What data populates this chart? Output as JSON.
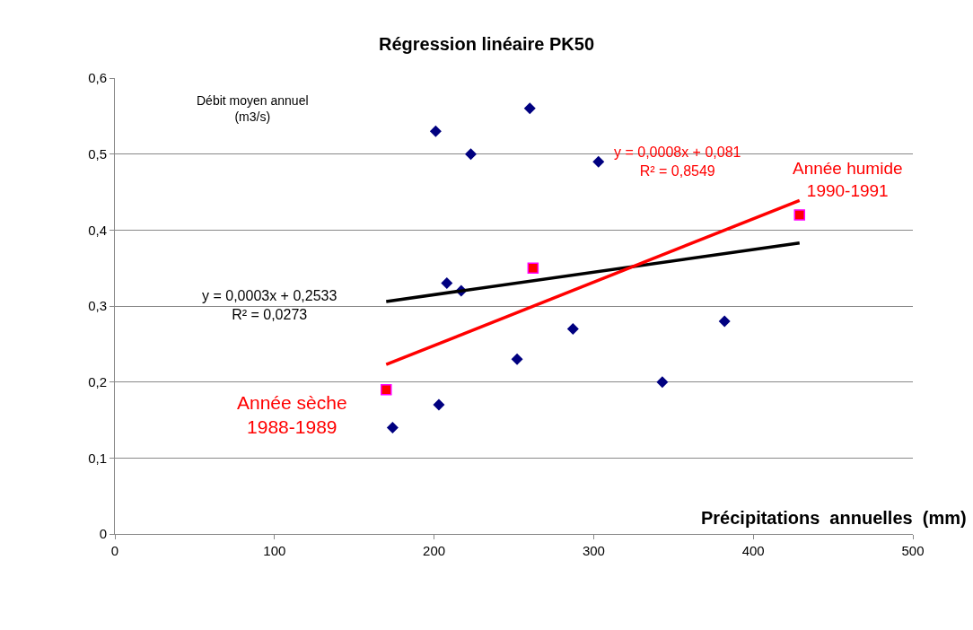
{
  "chart_data": {
    "type": "scatter",
    "title": "Régression linéaire PK50",
    "xlabel": "Précipitations  annuelles  (mm)",
    "ylabel": "Débit moyen annuel\n(m3/s)",
    "xlim": [
      0,
      500
    ],
    "xticks": [
      0,
      100,
      200,
      300,
      400,
      500
    ],
    "ylim": [
      0,
      0.6
    ],
    "yticks": [
      {
        "value": 0,
        "label": "0"
      },
      {
        "value": 0.1,
        "label": "0,1"
      },
      {
        "value": 0.2,
        "label": "0,2"
      },
      {
        "value": 0.3,
        "label": "0,3"
      },
      {
        "value": 0.4,
        "label": "0,4"
      },
      {
        "value": 0.5,
        "label": "0,5"
      },
      {
        "value": 0.6,
        "label": "0,6"
      }
    ],
    "grid": "y",
    "series": [
      {
        "marker": "diamond",
        "color": "#000080",
        "x": [
          201,
          223,
          260,
          303,
          208,
          217,
          252,
          287,
          203,
          174,
          343,
          382
        ],
        "values": [
          0.53,
          0.5,
          0.56,
          0.49,
          0.33,
          0.32,
          0.23,
          0.27,
          0.17,
          0.14,
          0.2,
          0.28
        ]
      },
      {
        "marker": "square",
        "color": "#ff0000",
        "x": [
          170,
          262,
          429
        ],
        "values": [
          0.19,
          0.35,
          0.42
        ]
      },
      {
        "type": "line",
        "marker": "none",
        "color": "#000000",
        "x": [
          170,
          429
        ],
        "values": [
          0.306,
          0.383
        ]
      },
      {
        "type": "line",
        "marker": "none",
        "color": "#ff0000",
        "x": [
          170,
          429
        ],
        "values": [
          0.223,
          0.439
        ]
      }
    ],
    "annotations": [
      "y = 0,0003x + 0,2533\nR² = 0,0273",
      "y = 0,0008x + 0,081\nR² = 0,8549",
      "Année sèche\n1988-1989",
      "Année humide\n1990-1991"
    ]
  }
}
